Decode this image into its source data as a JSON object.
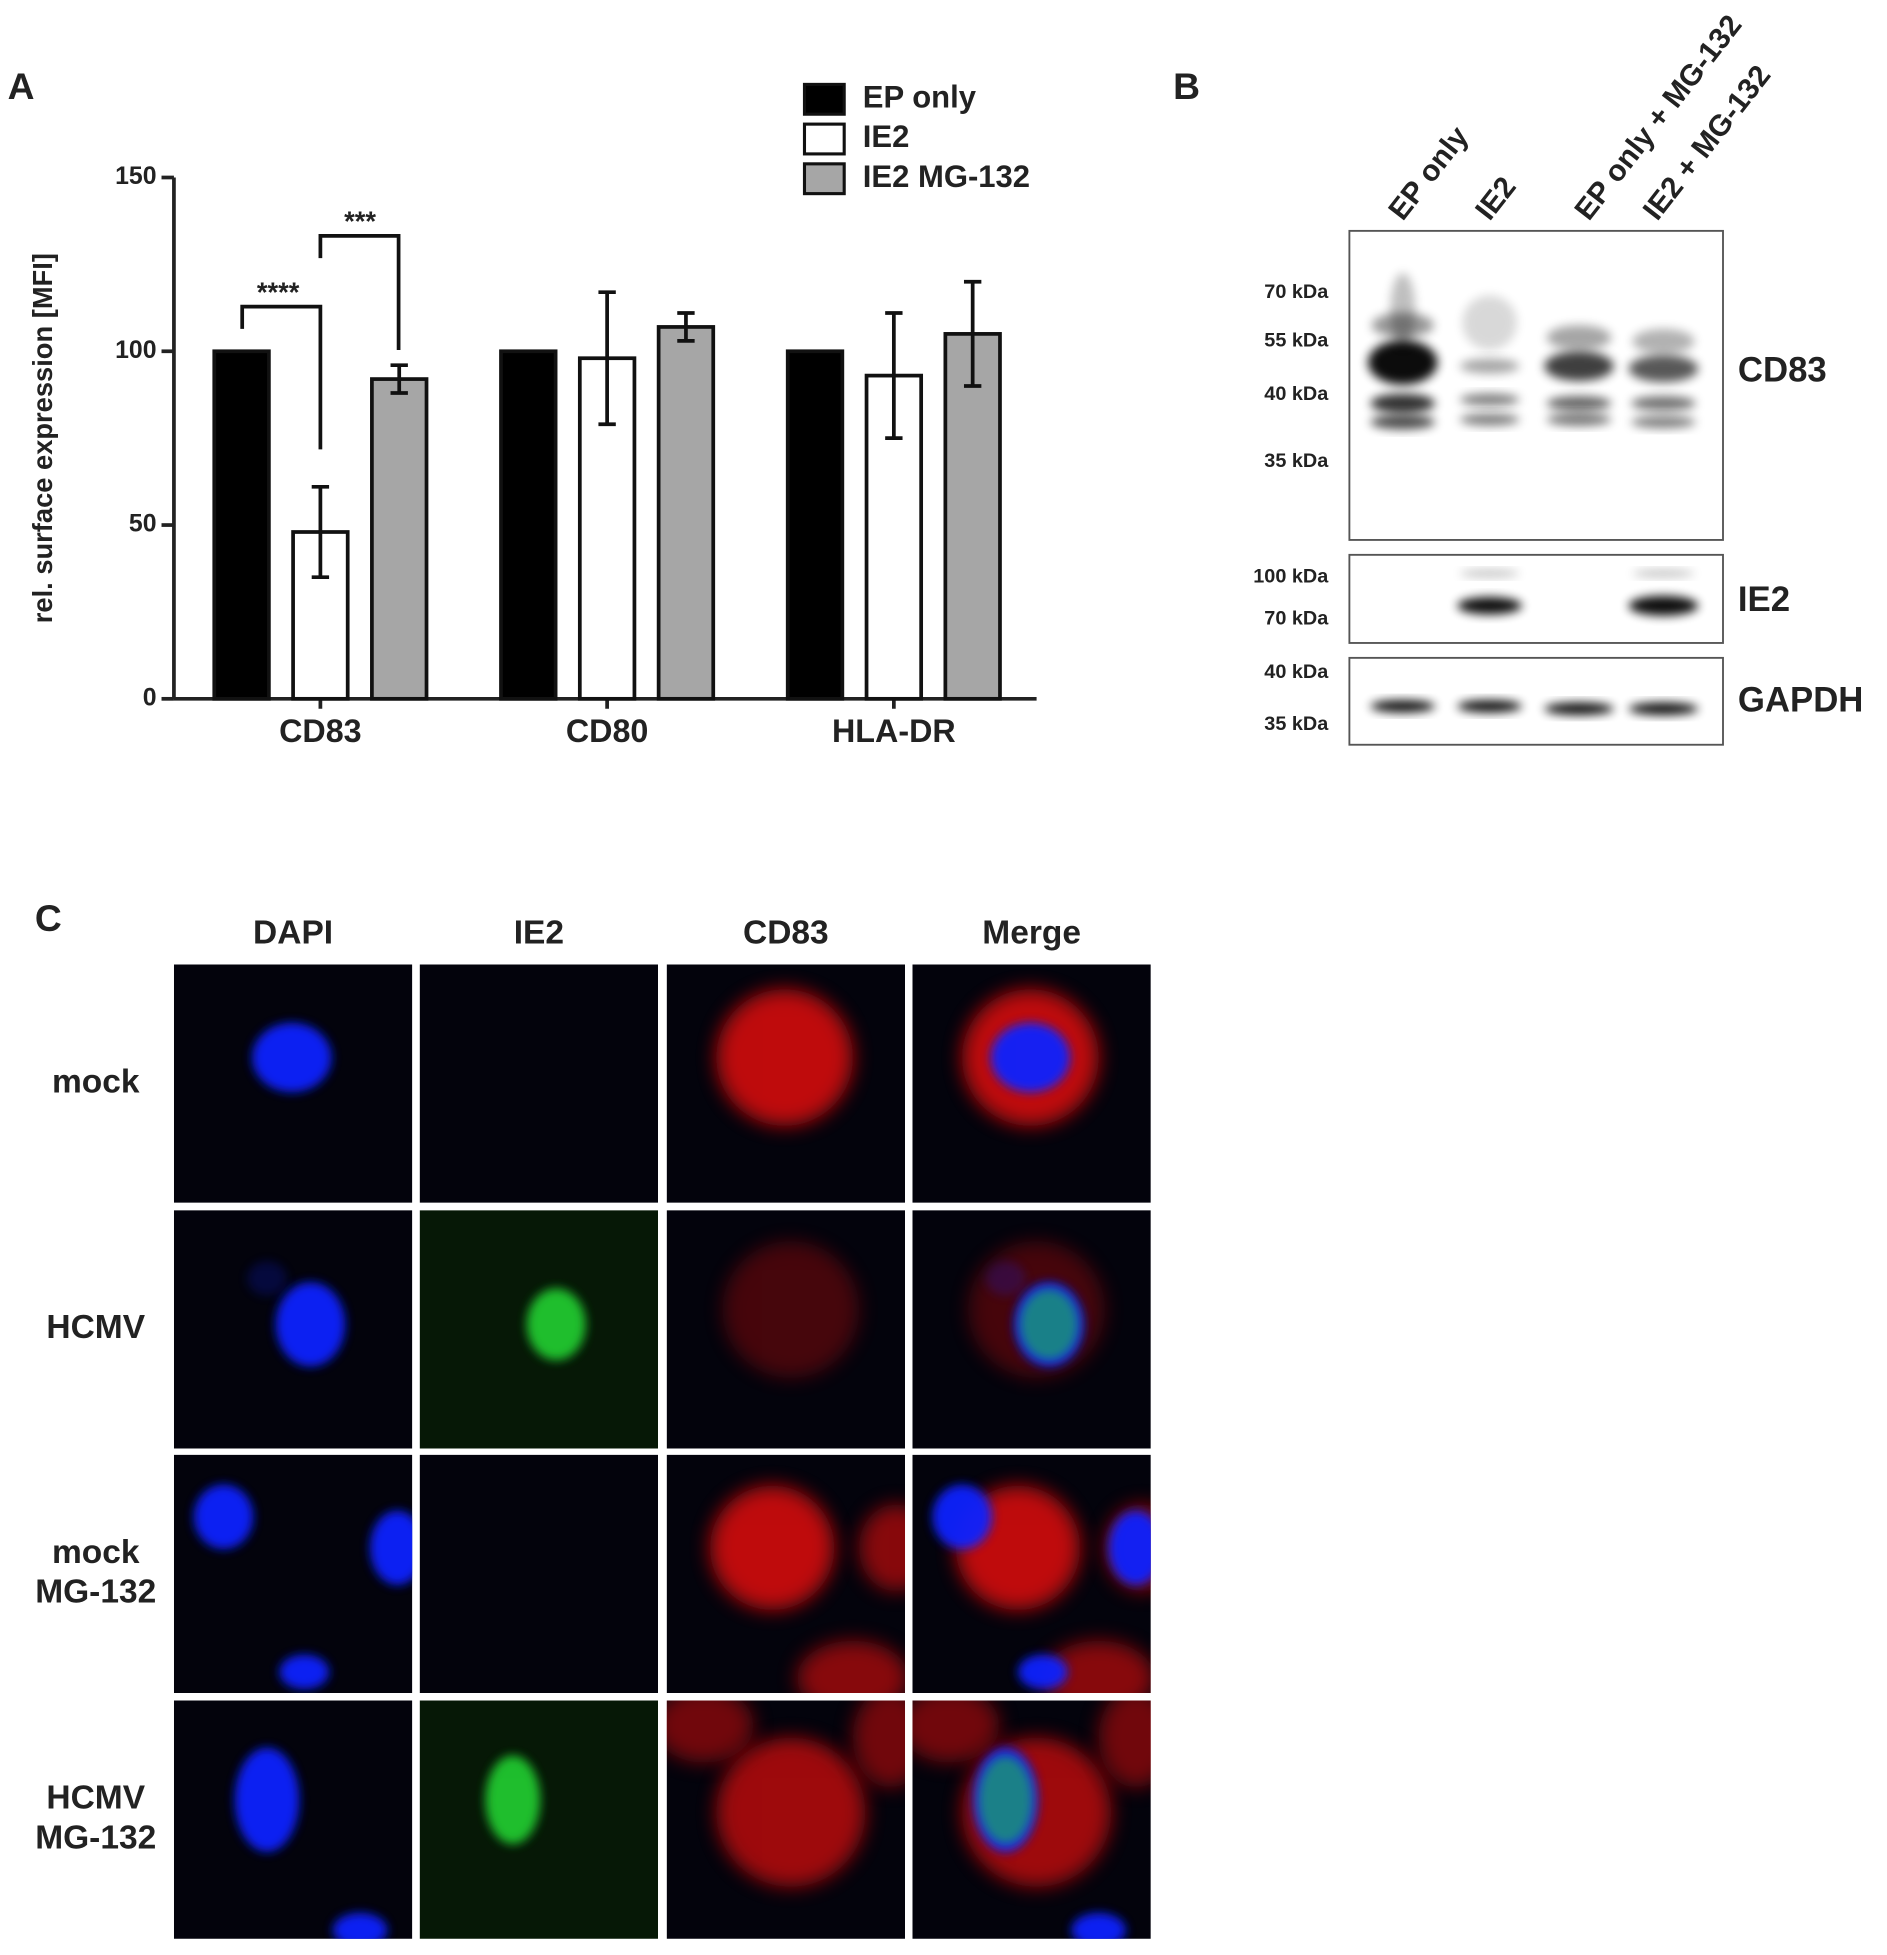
{
  "panel_labels": [
    "A",
    "B",
    "C"
  ],
  "chart_data": {
    "type": "bar",
    "y_label": "rel. surface expression [MFI]",
    "categories": [
      "CD83",
      "CD80",
      "HLA-DR"
    ],
    "series": [
      {
        "name": "EP only",
        "color": "#000000",
        "values": [
          100,
          100,
          100
        ]
      },
      {
        "name": "IE2",
        "color": "#ffffff",
        "values": [
          48,
          98,
          93
        ],
        "errors": [
          13,
          19,
          18
        ]
      },
      {
        "name": "IE2 MG-132",
        "color": "#a6a6a6",
        "values": [
          92,
          107,
          105
        ],
        "errors": [
          4,
          4,
          15
        ]
      }
    ],
    "ylim": [
      0,
      150
    ],
    "yticks": [
      0,
      50,
      100,
      150
    ],
    "grid": false,
    "legend": "top-right",
    "annotations": [
      "****",
      "***"
    ]
  },
  "western_blot": {
    "lanes": [
      "EP only",
      "IE2",
      "EP only + MG-132",
      "IE2 + MG-132"
    ],
    "blots": [
      {
        "name": "CD83",
        "markers": [
          "70 kDa",
          "55 kDa",
          "40 kDa",
          "35 kDa"
        ]
      },
      {
        "name": "IE2",
        "markers": [
          "100 kDa",
          "70 kDa"
        ]
      },
      {
        "name": "GAPDH",
        "markers": [
          "40 kDa",
          "35 kDa"
        ]
      }
    ]
  },
  "microscopy": {
    "columns": [
      "DAPI",
      "IE2",
      "CD83",
      "Merge"
    ],
    "rows": [
      [
        "mock"
      ],
      [
        "HCMV"
      ],
      [
        "mock",
        "MG-132"
      ],
      [
        "HCMV",
        "MG-132"
      ]
    ]
  }
}
